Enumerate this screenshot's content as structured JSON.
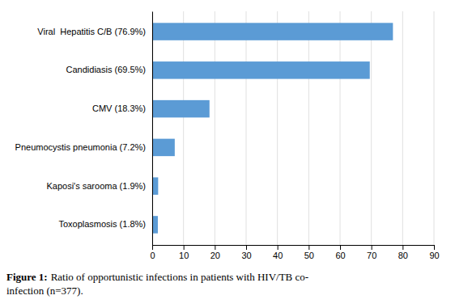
{
  "chart_data": {
    "type": "bar",
    "orientation": "horizontal",
    "categories": [
      "Toxoplasmosis (1.8%)",
      "Kaposi's sarooma (1.9%)",
      "Pneumocystis pneumonia (7.2%)",
      "CMV (18.3%)",
      "Candidiasis (69.5%)",
      "Viral  Hepatitis C/B (76.9%)"
    ],
    "values": [
      1.8,
      1.9,
      7.2,
      18.3,
      69.5,
      76.9
    ],
    "color": "#5b9bd5",
    "xlim": [
      0,
      90
    ],
    "xticks": [
      0,
      10,
      20,
      30,
      40,
      50,
      60,
      70,
      80,
      90
    ],
    "grid": true,
    "annotations": [
      "Figure 1:",
      "Ratio of opportunistic infections in patients with HIV/TB co-\ninfection (n=377)."
    ]
  }
}
